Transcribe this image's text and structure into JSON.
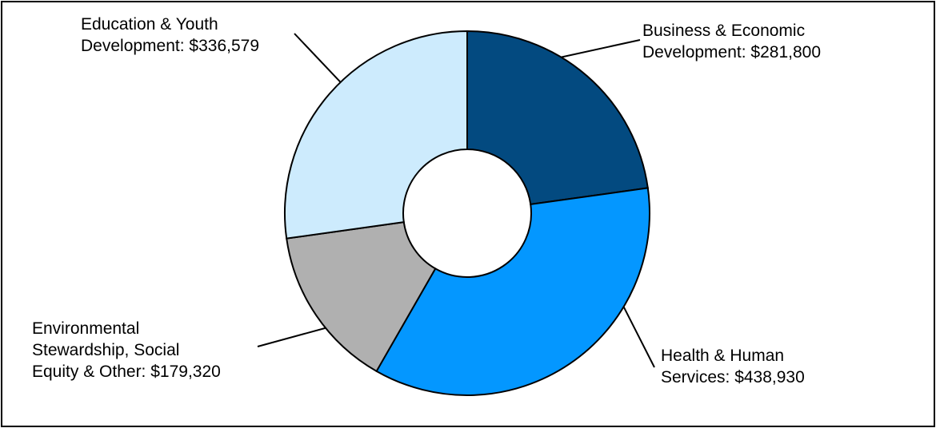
{
  "chart_data": {
    "type": "pie",
    "donut": true,
    "start_angle_deg": 0,
    "direction": "clockwise",
    "slices": [
      {
        "label_lines": [
          "Business & Economic",
          "Development: $281,800"
        ],
        "value": 281800,
        "color": "#034a80"
      },
      {
        "label_lines": [
          "Health & Human",
          "Services: $438,930"
        ],
        "value": 438930,
        "color": "#0497ff"
      },
      {
        "label_lines": [
          "Environmental",
          "Stewardship, Social",
          "Equity & Other: $179,320"
        ],
        "value": 179320,
        "color": "#b0b0b0"
      },
      {
        "label_lines": [
          "Education & Youth",
          "Development: $336,579"
        ],
        "value": 336579,
        "color": "#cdebfd"
      }
    ]
  }
}
